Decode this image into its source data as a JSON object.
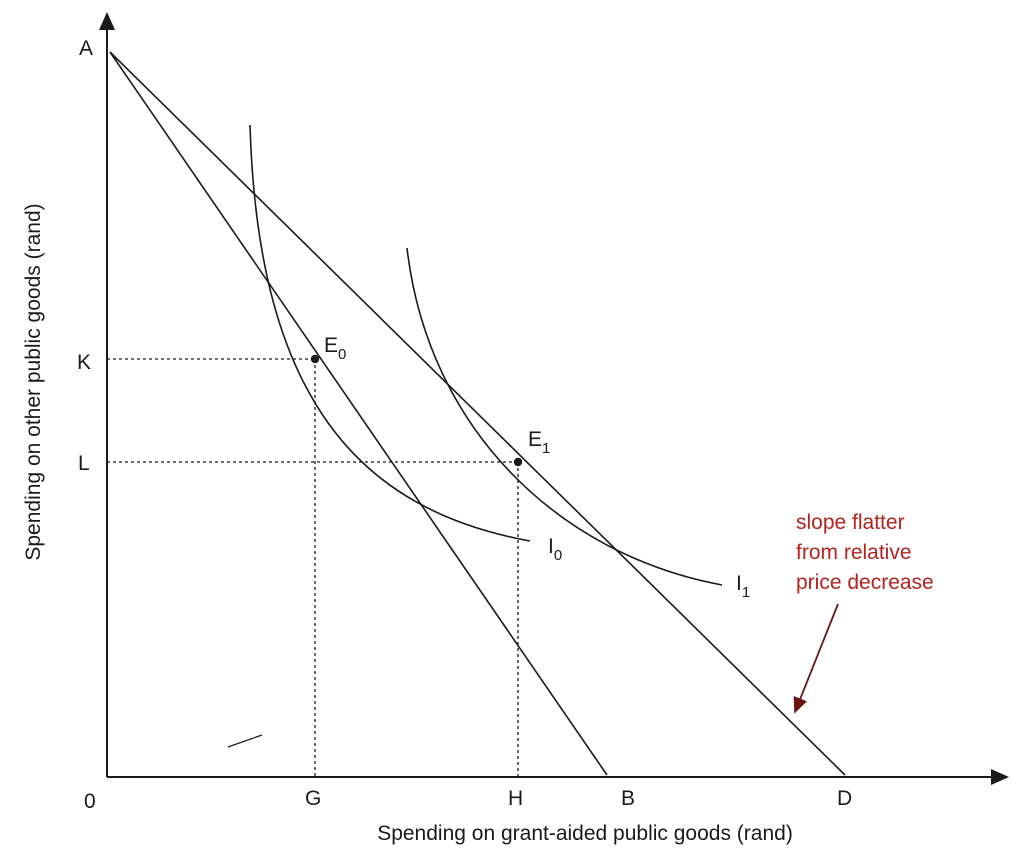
{
  "labels": {
    "origin": "0",
    "y_axis_points": [
      "A",
      "K",
      "L"
    ],
    "x_axis_points": [
      "G",
      "H",
      "B",
      "D"
    ]
  },
  "axes": {
    "x_title": "Spending on grant-aided public goods (rand)",
    "y_title": "Spending on other public goods (rand)"
  },
  "equilibria": {
    "e0": {
      "letter": "E",
      "sub": "0"
    },
    "e1": {
      "letter": "E",
      "sub": "1"
    }
  },
  "curves": {
    "i0": {
      "letter": "I",
      "sub": "0"
    },
    "i1": {
      "letter": "I",
      "sub": "1"
    }
  },
  "annotation": {
    "lines": [
      "slope flatter",
      "from relative",
      "price decrease"
    ],
    "color": "#b5231f",
    "arrow_color": "#6b1414"
  },
  "line_color": "#1a1a1a"
}
